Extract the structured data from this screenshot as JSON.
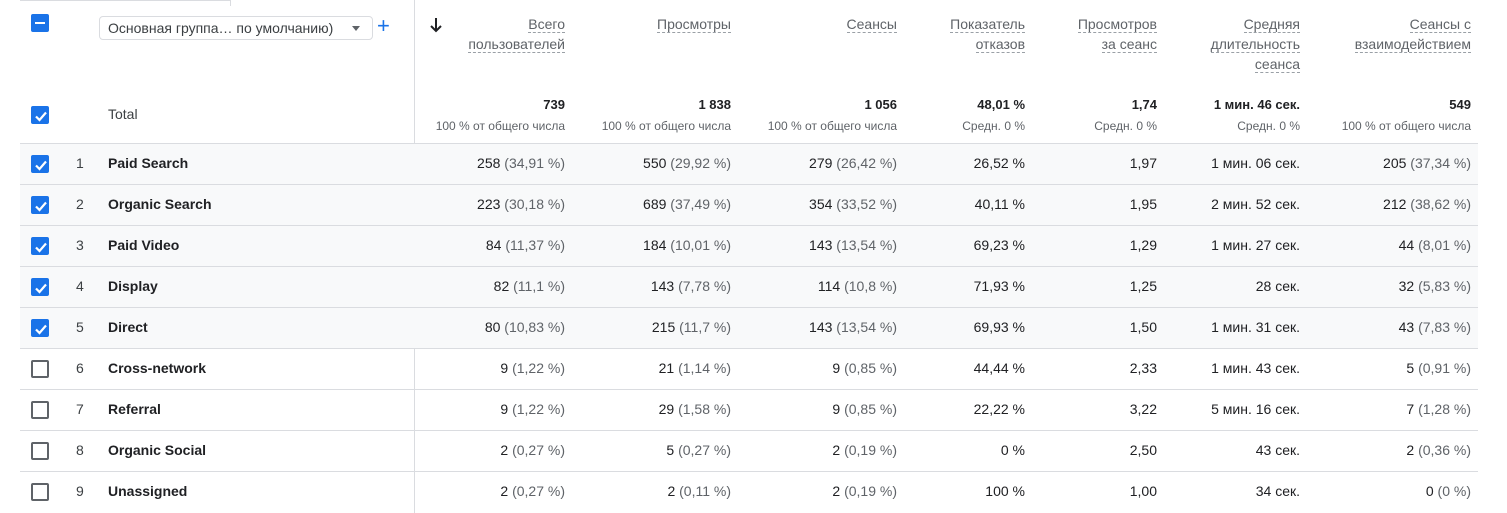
{
  "dimension_select": {
    "value": "Основная группа… по умолчанию)"
  },
  "columns": [
    {
      "label_lines": [
        "Всего",
        "пользователей"
      ],
      "total": "739",
      "total_sub": "100 % от общего числа"
    },
    {
      "label_lines": [
        "Просмотры"
      ],
      "total": "1 838",
      "total_sub": "100 % от общего числа"
    },
    {
      "label_lines": [
        "Сеансы"
      ],
      "total": "1 056",
      "total_sub": "100 % от общего числа"
    },
    {
      "label_lines": [
        "Показатель",
        "отказов"
      ],
      "total": "48,01 %",
      "total_sub": "Средн. 0 %"
    },
    {
      "label_lines": [
        "Просмотров",
        "за сеанс"
      ],
      "total": "1,74",
      "total_sub": "Средн. 0 %"
    },
    {
      "label_lines": [
        "Средняя",
        "длительность",
        "сеанса"
      ],
      "total": "1 мин. 46 сек.",
      "total_sub": "Средн. 0 %"
    },
    {
      "label_lines": [
        "Сеансы с",
        "взаимодействием"
      ],
      "total": "549",
      "total_sub": "100 % от общего числа"
    }
  ],
  "total_label": "Total",
  "rows": [
    {
      "rank": "1",
      "label": "Paid Search",
      "checked": true,
      "cells": [
        [
          "258",
          "(34,91 %)"
        ],
        [
          "550",
          "(29,92 %)"
        ],
        [
          "279",
          "(26,42 %)"
        ],
        [
          "26,52 %",
          ""
        ],
        [
          "1,97",
          ""
        ],
        [
          "1 мин. 06 сек.",
          ""
        ],
        [
          "205",
          "(37,34 %)"
        ]
      ]
    },
    {
      "rank": "2",
      "label": "Organic Search",
      "checked": true,
      "cells": [
        [
          "223",
          "(30,18 %)"
        ],
        [
          "689",
          "(37,49 %)"
        ],
        [
          "354",
          "(33,52 %)"
        ],
        [
          "40,11 %",
          ""
        ],
        [
          "1,95",
          ""
        ],
        [
          "2 мин. 52 сек.",
          ""
        ],
        [
          "212",
          "(38,62 %)"
        ]
      ]
    },
    {
      "rank": "3",
      "label": "Paid Video",
      "checked": true,
      "cells": [
        [
          "84",
          "(11,37 %)"
        ],
        [
          "184",
          "(10,01 %)"
        ],
        [
          "143",
          "(13,54 %)"
        ],
        [
          "69,23 %",
          ""
        ],
        [
          "1,29",
          ""
        ],
        [
          "1 мин. 27 сек.",
          ""
        ],
        [
          "44",
          "(8,01 %)"
        ]
      ]
    },
    {
      "rank": "4",
      "label": "Display",
      "checked": true,
      "cells": [
        [
          "82",
          "(11,1 %)"
        ],
        [
          "143",
          "(7,78 %)"
        ],
        [
          "114",
          "(10,8 %)"
        ],
        [
          "71,93 %",
          ""
        ],
        [
          "1,25",
          ""
        ],
        [
          "28 сек.",
          ""
        ],
        [
          "32",
          "(5,83 %)"
        ]
      ]
    },
    {
      "rank": "5",
      "label": "Direct",
      "checked": true,
      "cells": [
        [
          "80",
          "(10,83 %)"
        ],
        [
          "215",
          "(11,7 %)"
        ],
        [
          "143",
          "(13,54 %)"
        ],
        [
          "69,93 %",
          ""
        ],
        [
          "1,50",
          ""
        ],
        [
          "1 мин. 31 сек.",
          ""
        ],
        [
          "43",
          "(7,83 %)"
        ]
      ]
    },
    {
      "rank": "6",
      "label": "Cross-network",
      "checked": false,
      "cells": [
        [
          "9",
          "(1,22 %)"
        ],
        [
          "21",
          "(1,14 %)"
        ],
        [
          "9",
          "(0,85 %)"
        ],
        [
          "44,44 %",
          ""
        ],
        [
          "2,33",
          ""
        ],
        [
          "1 мин. 43 сек.",
          ""
        ],
        [
          "5",
          "(0,91 %)"
        ]
      ]
    },
    {
      "rank": "7",
      "label": "Referral",
      "checked": false,
      "cells": [
        [
          "9",
          "(1,22 %)"
        ],
        [
          "29",
          "(1,58 %)"
        ],
        [
          "9",
          "(0,85 %)"
        ],
        [
          "22,22 %",
          ""
        ],
        [
          "3,22",
          ""
        ],
        [
          "5 мин. 16 сек.",
          ""
        ],
        [
          "7",
          "(1,28 %)"
        ]
      ]
    },
    {
      "rank": "8",
      "label": "Organic Social",
      "checked": false,
      "cells": [
        [
          "2",
          "(0,27 %)"
        ],
        [
          "5",
          "(0,27 %)"
        ],
        [
          "2",
          "(0,19 %)"
        ],
        [
          "0 %",
          ""
        ],
        [
          "2,50",
          ""
        ],
        [
          "43 сек.",
          ""
        ],
        [
          "2",
          "(0,36 %)"
        ]
      ]
    },
    {
      "rank": "9",
      "label": "Unassigned",
      "checked": false,
      "cells": [
        [
          "2",
          "(0,27 %)"
        ],
        [
          "2",
          "(0,11 %)"
        ],
        [
          "2",
          "(0,19 %)"
        ],
        [
          "100 %",
          ""
        ],
        [
          "1,00",
          ""
        ],
        [
          "34 сек.",
          ""
        ],
        [
          "0",
          "(0 %)"
        ]
      ]
    }
  ],
  "colors": {
    "accent": "#1a73e8",
    "row_shade": "#f8f9fa",
    "divider": "#dadce0"
  }
}
